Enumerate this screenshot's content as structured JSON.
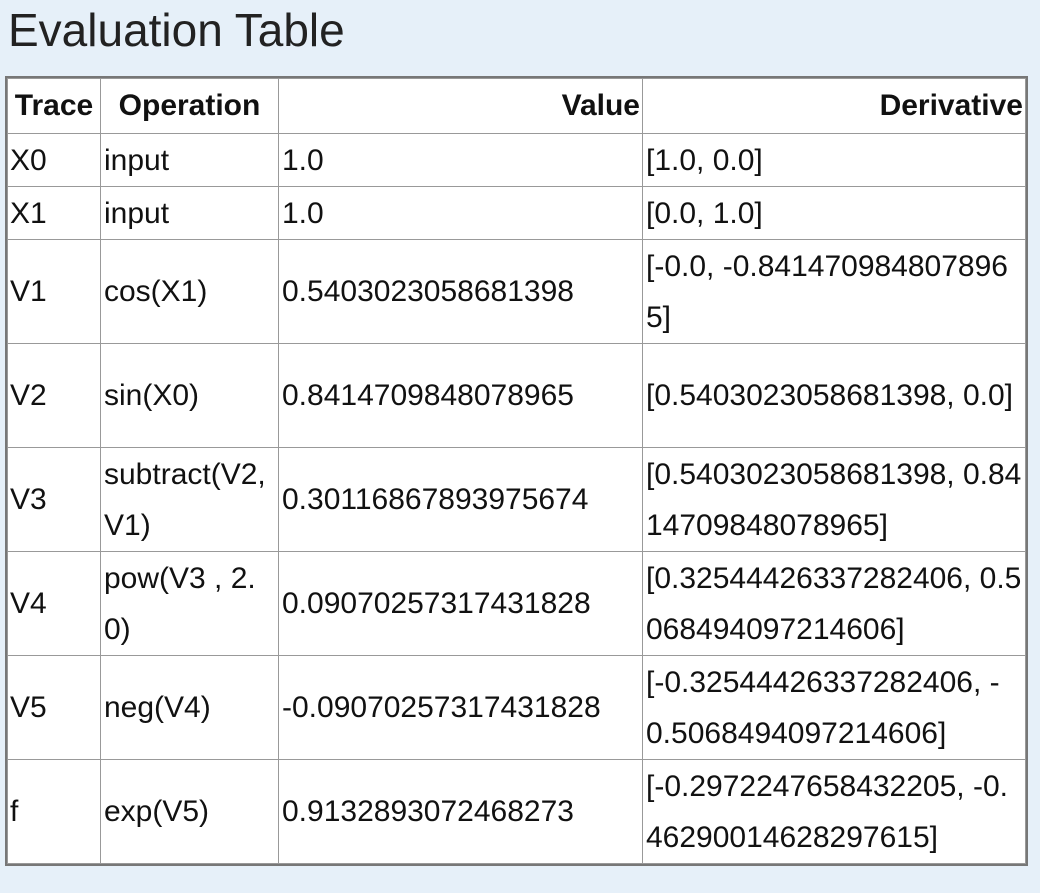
{
  "title": "Evaluation Table",
  "columns": [
    "Trace",
    "Operation",
    "Value",
    "Derivative"
  ],
  "rows": [
    {
      "trace": "X0",
      "operation": "input",
      "value": "1.0",
      "derivative": "[1.0, 0.0]"
    },
    {
      "trace": "X1",
      "operation": "input",
      "value": "1.0",
      "derivative": "[0.0, 1.0]"
    },
    {
      "trace": "V1",
      "operation": "cos(X1)",
      "value": "0.5403023058681398",
      "derivative": "[-0.0, -0.8414709848078965]"
    },
    {
      "trace": "V2",
      "operation": "sin(X0)",
      "value": "0.8414709848078965",
      "derivative": "[0.5403023058681398, 0.0]"
    },
    {
      "trace": "V3",
      "operation": "subtract(V2, V1)",
      "value": "0.30116867893975674",
      "derivative": "[0.5403023058681398, 0.8414709848078965]"
    },
    {
      "trace": "V4",
      "operation": "pow(V3 , 2.0)",
      "value": "0.09070257317431828",
      "derivative": "[0.32544426337282406, 0.5068494097214606]"
    },
    {
      "trace": "V5",
      "operation": "neg(V4)",
      "value": "-0.09070257317431828",
      "derivative": "[-0.32544426337282406, -0.5068494097214606]"
    },
    {
      "trace": "f",
      "operation": "exp(V5)",
      "value": "0.9132893072468273",
      "derivative": "[-0.2972247658432205, -0.46290014628297615]"
    }
  ]
}
